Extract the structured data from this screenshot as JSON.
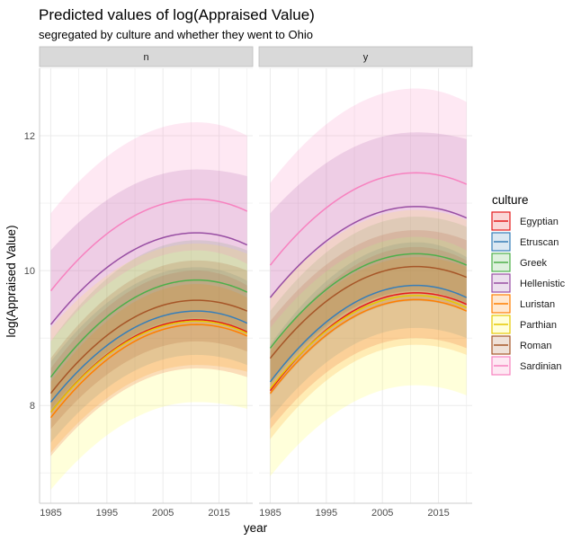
{
  "chart_data": {
    "type": "line",
    "title": "Predicted values of log(Appraised Value)",
    "subtitle": "segregated by culture and whether they went to Ohio",
    "xlabel": "year",
    "ylabel": "log(Appraised Value)",
    "xlim": [
      1983,
      2021
    ],
    "ylim": [
      6.55,
      13.0
    ],
    "x_ticks": [
      1985,
      1995,
      2005,
      2015
    ],
    "y_ticks": [
      8,
      10,
      12
    ],
    "grid": true,
    "legend": {
      "title": "culture",
      "position": "right"
    },
    "facet_by": "Ohio",
    "facets": [
      "n",
      "y"
    ],
    "x_range": [
      1985,
      2020
    ],
    "peak_year": 2011,
    "series": [
      {
        "name": "Egyptian",
        "color": "#E41A1C",
        "fill": "#E41A1C",
        "start": {
          "n": 7.9,
          "y": 8.22
        },
        "peak": {
          "n": 9.27,
          "y": 9.67
        },
        "end": {
          "n": 9.09,
          "y": 9.5
        },
        "lower": {
          "n": [
            7.25,
            8.55,
            8.42
          ],
          "y": [
            7.65,
            9.0,
            8.85
          ]
        },
        "upper": {
          "n": [
            8.55,
            10.0,
            9.78
          ],
          "y": [
            8.8,
            10.35,
            10.15
          ]
        }
      },
      {
        "name": "Etruscan",
        "color": "#377EB8",
        "fill": "#377EB8",
        "start": {
          "n": 8.05,
          "y": 8.35
        },
        "peak": {
          "n": 9.4,
          "y": 9.78
        },
        "end": {
          "n": 9.22,
          "y": 9.6
        },
        "lower": {
          "n": [
            7.45,
            8.75,
            8.6
          ],
          "y": [
            7.8,
            9.15,
            9.0
          ]
        },
        "upper": {
          "n": [
            8.65,
            10.05,
            9.85
          ],
          "y": [
            8.9,
            10.42,
            10.2
          ]
        }
      },
      {
        "name": "Greek",
        "color": "#4DAF4A",
        "fill": "#4DAF4A",
        "start": {
          "n": 8.42,
          "y": 8.85
        },
        "peak": {
          "n": 9.86,
          "y": 10.25
        },
        "end": {
          "n": 9.68,
          "y": 10.08
        },
        "lower": {
          "n": [
            7.9,
            9.25,
            9.05
          ],
          "y": [
            8.3,
            9.7,
            9.5
          ]
        },
        "upper": {
          "n": [
            8.95,
            10.45,
            10.3
          ],
          "y": [
            9.4,
            10.8,
            10.65
          ]
        }
      },
      {
        "name": "Hellenistic",
        "color": "#984EA3",
        "fill": "#984EA3",
        "start": {
          "n": 9.2,
          "y": 9.6
        },
        "peak": {
          "n": 10.56,
          "y": 10.95
        },
        "end": {
          "n": 10.38,
          "y": 10.78
        },
        "lower": {
          "n": [
            7.95,
            9.3,
            9.1
          ],
          "y": [
            8.35,
            9.7,
            9.5
          ]
        },
        "upper": {
          "n": [
            10.3,
            11.5,
            11.4
          ],
          "y": [
            10.85,
            12.05,
            11.95
          ]
        }
      },
      {
        "name": "Luristan",
        "color": "#FF7F00",
        "fill": "#FF7F00",
        "start": {
          "n": 7.82,
          "y": 8.18
        },
        "peak": {
          "n": 9.2,
          "y": 9.57
        },
        "end": {
          "n": 9.03,
          "y": 9.4
        },
        "lower": {
          "n": [
            7.3,
            8.6,
            8.5
          ],
          "y": [
            7.5,
            8.9,
            8.75
          ]
        },
        "upper": {
          "n": [
            8.35,
            9.8,
            9.6
          ],
          "y": [
            8.85,
            10.2,
            10.05
          ]
        }
      },
      {
        "name": "Parthian",
        "color": "#FFFF33",
        "fill": "#FFFF33",
        "start": {
          "n": 7.9,
          "y": 8.25
        },
        "peak": {
          "n": 9.25,
          "y": 9.63
        },
        "end": {
          "n": 9.07,
          "y": 9.45
        },
        "lower": {
          "n": [
            6.75,
            8.05,
            7.95
          ],
          "y": [
            6.95,
            8.3,
            8.15
          ]
        },
        "upper": {
          "n": [
            9.15,
            10.4,
            10.25
          ],
          "y": [
            9.6,
            10.9,
            10.75
          ]
        }
      },
      {
        "name": "Roman",
        "color": "#A65628",
        "fill": "#A65628",
        "start": {
          "n": 8.18,
          "y": 8.7
        },
        "peak": {
          "n": 9.56,
          "y": 10.06
        },
        "end": {
          "n": 9.4,
          "y": 9.9
        },
        "lower": {
          "n": [
            7.65,
            8.95,
            8.8
          ],
          "y": [
            8.15,
            9.55,
            9.4
          ]
        },
        "upper": {
          "n": [
            8.7,
            10.15,
            10.0
          ],
          "y": [
            9.25,
            10.6,
            10.45
          ]
        }
      },
      {
        "name": "Sardinian",
        "color": "#F781BF",
        "fill": "#F781BF",
        "start": {
          "n": 9.7,
          "y": 10.08
        },
        "peak": {
          "n": 11.06,
          "y": 11.45
        },
        "end": {
          "n": 10.88,
          "y": 11.28
        },
        "lower": {
          "n": [
            8.95,
            10.3,
            10.1
          ],
          "y": [
            9.15,
            10.5,
            10.3
          ]
        },
        "upper": {
          "n": [
            10.85,
            12.2,
            12.0
          ],
          "y": [
            11.3,
            12.7,
            12.5
          ]
        }
      }
    ]
  }
}
